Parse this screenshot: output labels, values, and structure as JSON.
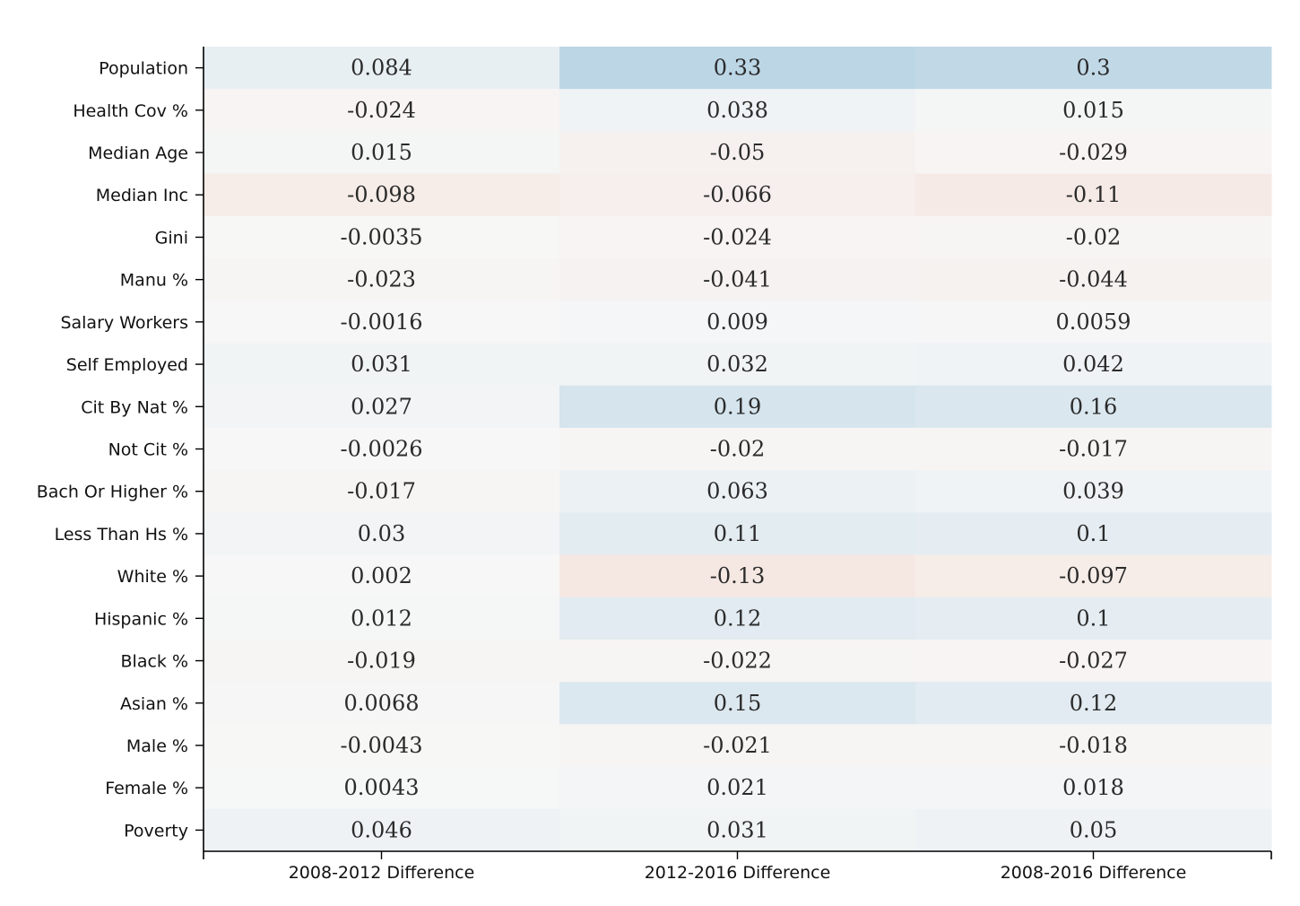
{
  "chart_data": {
    "type": "heatmap",
    "title": "",
    "xlabel": "",
    "ylabel": "",
    "columns": [
      "2008-2012 Difference",
      "2012-2016 Difference",
      "2008-2016 Difference"
    ],
    "rows": [
      "Population",
      "Health Cov %",
      "Median Age",
      "Median Inc",
      "Gini",
      "Manu %",
      "Salary Workers",
      "Self Employed",
      "Cit By Nat %",
      "Not Cit %",
      "Bach Or Higher %",
      "Less Than Hs %",
      "White %",
      "Hispanic %",
      "Black %",
      "Asian %",
      "Male %",
      "Female %",
      "Poverty"
    ],
    "values": [
      [
        0.084,
        0.33,
        0.3
      ],
      [
        -0.024,
        0.038,
        0.015
      ],
      [
        0.015,
        -0.05,
        -0.029
      ],
      [
        -0.098,
        -0.066,
        -0.11
      ],
      [
        -0.0035,
        -0.024,
        -0.02
      ],
      [
        -0.023,
        -0.041,
        -0.044
      ],
      [
        -0.0016,
        0.009,
        0.0059
      ],
      [
        0.031,
        0.032,
        0.042
      ],
      [
        0.027,
        0.19,
        0.16
      ],
      [
        -0.0026,
        -0.02,
        -0.017
      ],
      [
        -0.017,
        0.063,
        0.039
      ],
      [
        0.03,
        0.11,
        0.1
      ],
      [
        0.002,
        -0.13,
        -0.097
      ],
      [
        0.012,
        0.12,
        0.1
      ],
      [
        -0.019,
        -0.022,
        -0.027
      ],
      [
        0.0068,
        0.15,
        0.12
      ],
      [
        -0.0043,
        -0.021,
        -0.018
      ],
      [
        0.0043,
        0.021,
        0.018
      ],
      [
        0.046,
        0.031,
        0.05
      ]
    ],
    "value_labels": [
      [
        "0.084",
        "0.33",
        "0.3"
      ],
      [
        "-0.024",
        "0.038",
        "0.015"
      ],
      [
        "0.015",
        "-0.05",
        "-0.029"
      ],
      [
        "-0.098",
        "-0.066",
        "-0.11"
      ],
      [
        "-0.0035",
        "-0.024",
        "-0.02"
      ],
      [
        "-0.023",
        "-0.041",
        "-0.044"
      ],
      [
        "-0.0016",
        "0.009",
        "0.0059"
      ],
      [
        "0.031",
        "0.032",
        "0.042"
      ],
      [
        "0.027",
        "0.19",
        "0.16"
      ],
      [
        "-0.0026",
        "-0.02",
        "-0.017"
      ],
      [
        "-0.017",
        "0.063",
        "0.039"
      ],
      [
        "0.03",
        "0.11",
        "0.1"
      ],
      [
        "0.002",
        "-0.13",
        "-0.097"
      ],
      [
        "0.012",
        "0.12",
        "0.1"
      ],
      [
        "-0.019",
        "-0.022",
        "-0.027"
      ],
      [
        "0.0068",
        "0.15",
        "0.12"
      ],
      [
        "-0.0043",
        "-0.021",
        "-0.018"
      ],
      [
        "0.0043",
        "0.021",
        "0.018"
      ],
      [
        "0.046",
        "0.031",
        "0.05"
      ]
    ],
    "color_scale": {
      "name": "diverging red-blue",
      "negative": "#e8845f",
      "neutral": "#f7f7f7",
      "positive": "#4393c3",
      "vmin": -1,
      "vmax": 1
    },
    "grid": false,
    "legend": "none"
  }
}
